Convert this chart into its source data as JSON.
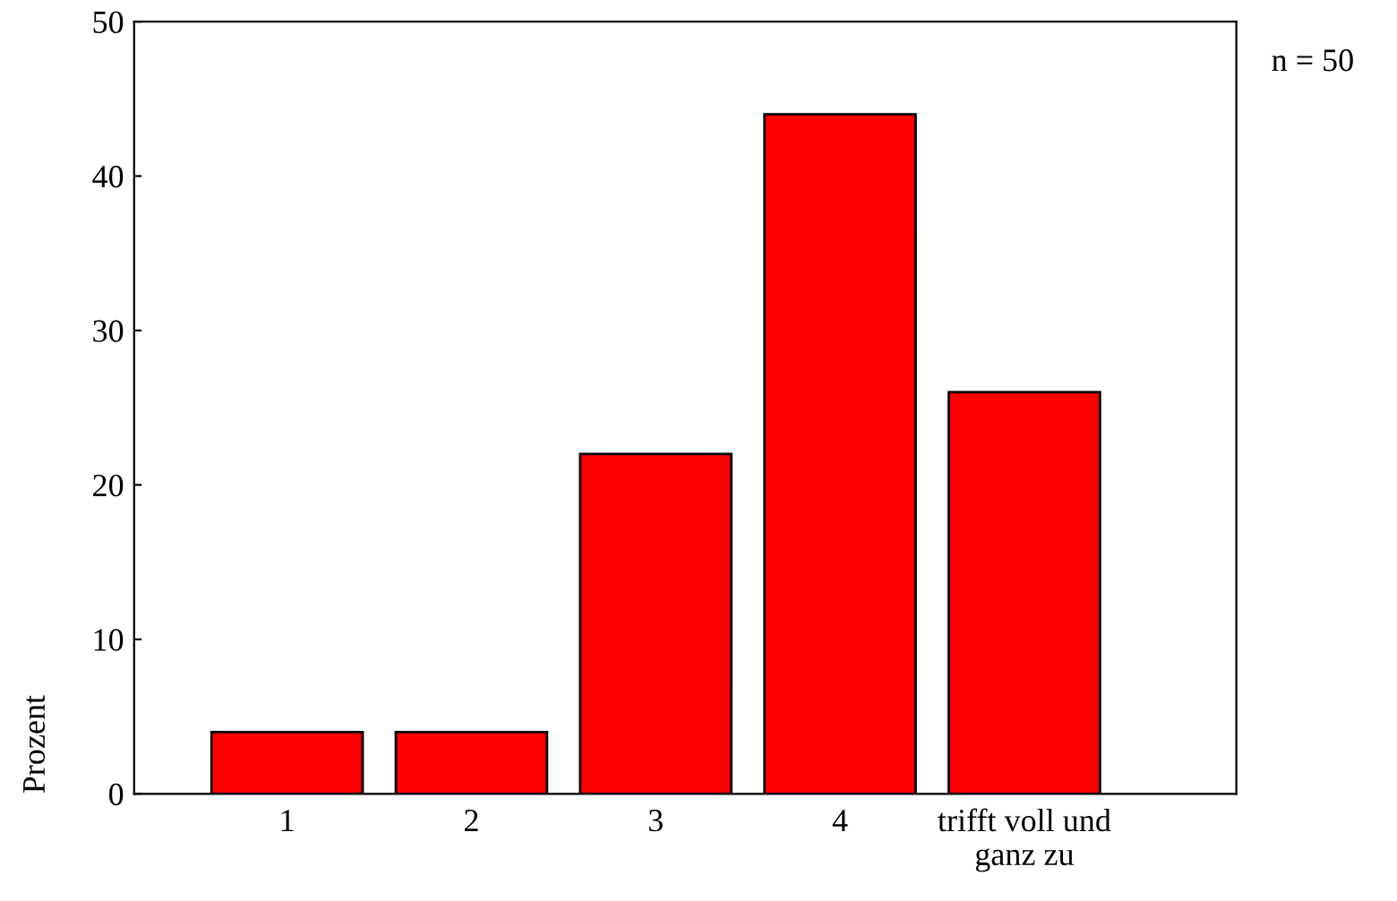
{
  "chart_data": {
    "type": "bar",
    "ylabel": "Prozent",
    "categories": [
      "1",
      "2",
      "3",
      "4",
      "trifft voll und\nganz zu"
    ],
    "values": [
      4,
      4,
      22,
      44,
      26
    ],
    "color": "#ff0000",
    "ylim": [
      0,
      50
    ],
    "yticks": [
      0,
      10,
      20,
      30,
      40,
      50
    ],
    "grid": false,
    "annotations": [
      "n = 50"
    ]
  }
}
